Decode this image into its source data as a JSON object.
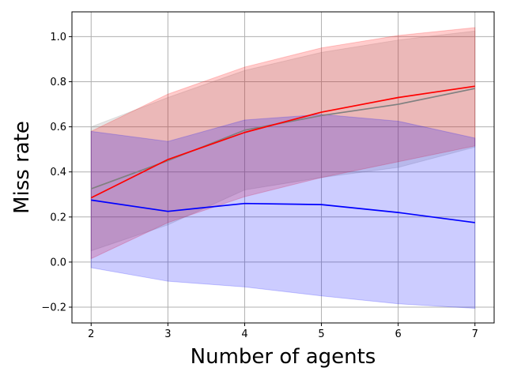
{
  "chart_data": {
    "type": "line",
    "xlabel": "Number of agents",
    "ylabel": "Miss rate",
    "xlim": [
      1.75,
      7.25
    ],
    "ylim": [
      -0.27,
      1.11
    ],
    "grid": true,
    "x": [
      2,
      3,
      4,
      5,
      6,
      7
    ],
    "x_ticks": [
      2,
      3,
      4,
      5,
      6,
      7
    ],
    "x_tick_labels": [
      "2",
      "3",
      "4",
      "5",
      "6",
      "7"
    ],
    "y_ticks": [
      -0.2,
      0.0,
      0.2,
      0.4,
      0.6,
      0.8,
      1.0
    ],
    "y_tick_labels": [
      "−0.2",
      "0.0",
      "0.2",
      "0.4",
      "0.6",
      "0.8",
      "1.0"
    ],
    "series": [
      {
        "color": "#808080",
        "values": [
          0.325,
          0.45,
          0.585,
          0.65,
          0.7,
          0.77
        ],
        "band_lower": [
          0.05,
          0.165,
          0.32,
          0.375,
          0.42,
          0.51
        ],
        "band_upper": [
          0.6,
          0.73,
          0.85,
          0.93,
          0.985,
          1.025
        ]
      },
      {
        "color": "#ff0000",
        "values": [
          0.285,
          0.455,
          0.575,
          0.665,
          0.73,
          0.78
        ],
        "band_lower": [
          0.015,
          0.175,
          0.29,
          0.375,
          0.445,
          0.515
        ],
        "band_upper": [
          0.58,
          0.745,
          0.865,
          0.95,
          1.005,
          1.04
        ]
      },
      {
        "color": "#0000ff",
        "values": [
          0.275,
          0.225,
          0.26,
          0.255,
          0.22,
          0.175
        ],
        "band_lower": [
          -0.025,
          -0.085,
          -0.11,
          -0.15,
          -0.185,
          -0.205
        ],
        "band_upper": [
          0.58,
          0.535,
          0.63,
          0.655,
          0.625,
          0.55
        ]
      }
    ]
  }
}
